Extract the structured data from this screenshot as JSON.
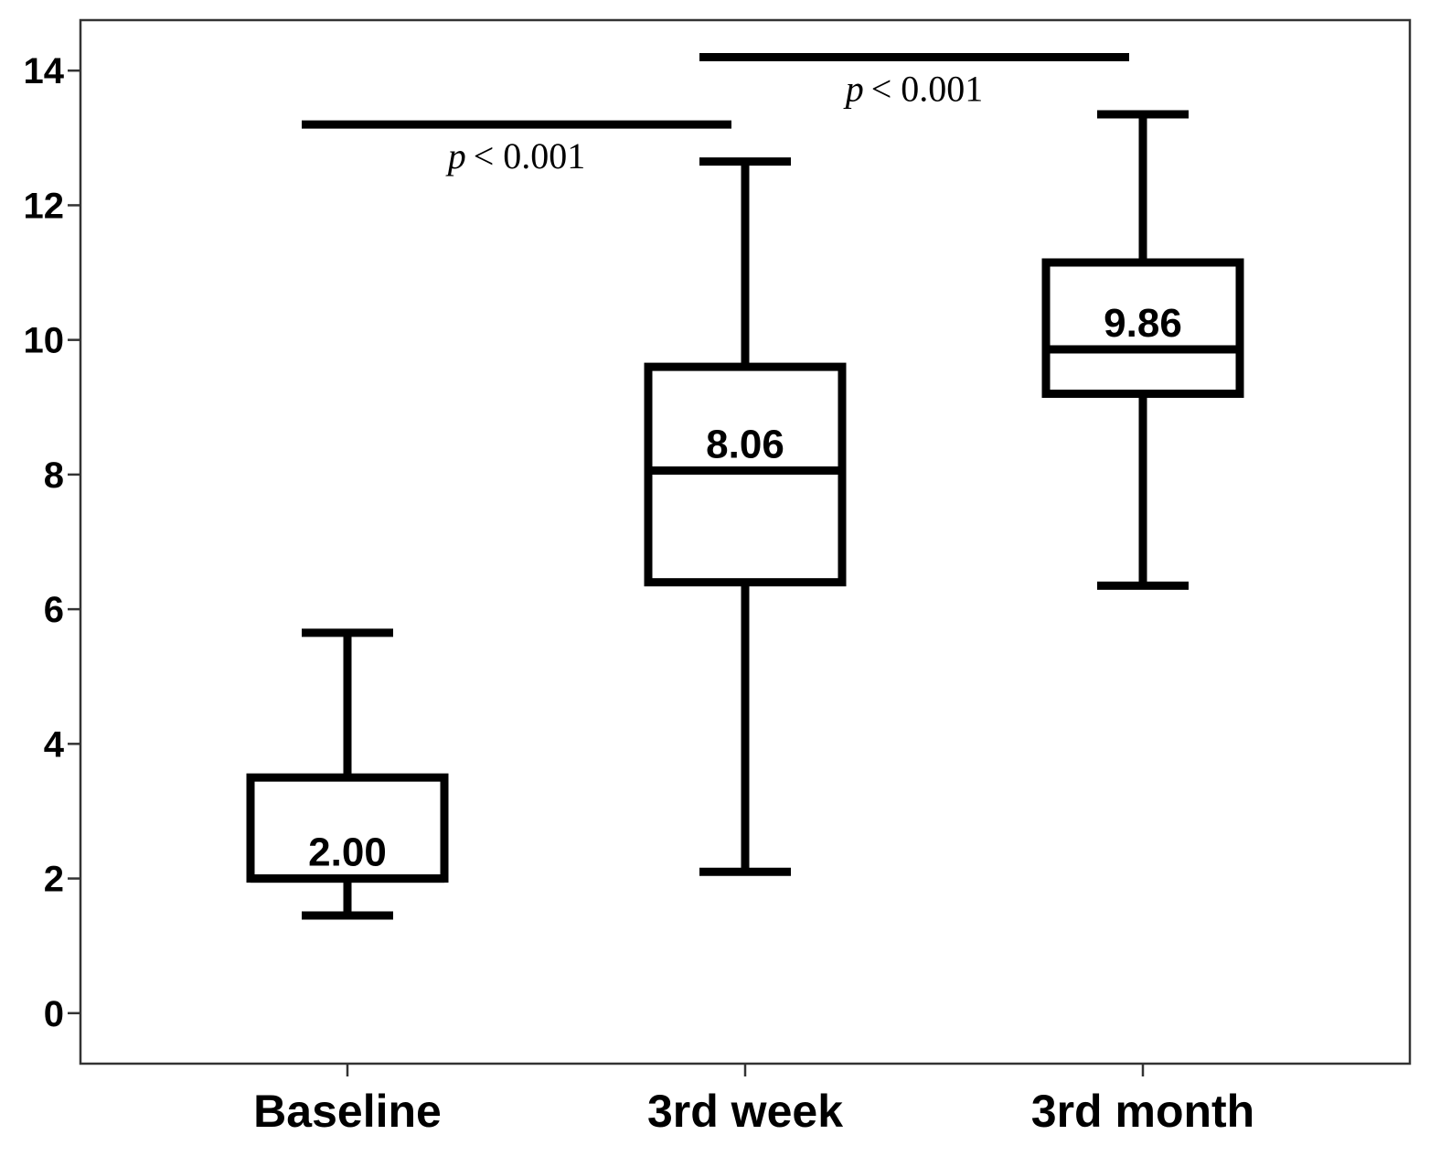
{
  "chart_data": {
    "type": "box",
    "title": "",
    "xlabel": "",
    "ylabel": "",
    "ylim": [
      -0.75,
      14.75
    ],
    "yticks": [
      0,
      2,
      4,
      6,
      8,
      10,
      12,
      14
    ],
    "categories": [
      "Baseline",
      "3rd week",
      "3rd month"
    ],
    "boxes": [
      {
        "category": "Baseline",
        "whisker_low": 1.45,
        "q1": 2.0,
        "median": 2.0,
        "q3": 3.5,
        "whisker_high": 5.65,
        "median_label": "2.00"
      },
      {
        "category": "3rd week",
        "whisker_low": 2.1,
        "q1": 6.4,
        "median": 8.06,
        "q3": 9.6,
        "whisker_high": 12.65,
        "median_label": "8.06"
      },
      {
        "category": "3rd month",
        "whisker_low": 6.35,
        "q1": 9.2,
        "median": 9.86,
        "q3": 11.15,
        "whisker_high": 13.35,
        "median_label": "9.86"
      }
    ],
    "annotations": [
      {
        "from": "Baseline",
        "to": "3rd week",
        "y": 13.2,
        "p_symbol": "p",
        "text": "< 0.001"
      },
      {
        "from": "3rd week",
        "to": "3rd month",
        "y": 14.2,
        "p_symbol": "p",
        "text": "< 0.001"
      }
    ],
    "colors": {
      "stroke": "#000000",
      "fill": "#ffffff",
      "frame": "#333333"
    },
    "grid": false,
    "legend": "none"
  }
}
